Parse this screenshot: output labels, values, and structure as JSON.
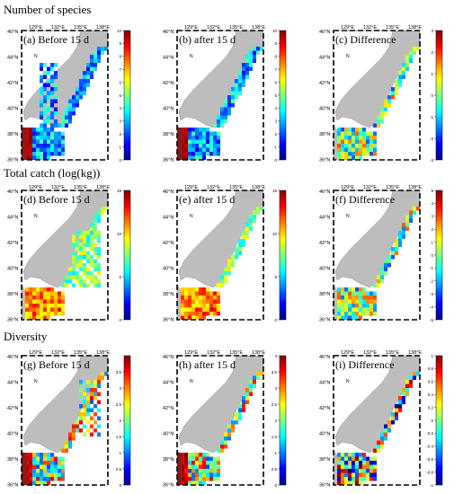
{
  "sections": [
    {
      "title": "Number of species",
      "panels": [
        {
          "label": "(a) Before 15 d",
          "cbar": {
            "min": 0,
            "max": 10,
            "ticks": [
              10,
              9,
              8,
              7,
              6,
              5,
              4,
              3,
              2,
              1,
              0
            ]
          }
        },
        {
          "label": "(b) after 15 d",
          "cbar": {
            "min": 0,
            "max": 10,
            "ticks": [
              10,
              9,
              8,
              7,
              6,
              5,
              4,
              3,
              2,
              1,
              0
            ]
          }
        },
        {
          "label": "(c) Difference",
          "cbar": {
            "min": -3,
            "max": 3,
            "ticks": [
              3,
              2,
              1,
              0,
              -1,
              -2,
              -3
            ]
          }
        }
      ]
    },
    {
      "title": "Total catch (log(kg))",
      "panels": [
        {
          "label": "(d) Before 15 d",
          "cbar": {
            "min": 0,
            "max": 15,
            "ticks": [
              15,
              10,
              5,
              0
            ]
          }
        },
        {
          "label": "(e) after 15 d",
          "cbar": {
            "min": 0,
            "max": 15,
            "ticks": [
              15,
              10,
              5,
              0
            ]
          }
        },
        {
          "label": "(f) Difference",
          "cbar": {
            "min": -5,
            "max": 5,
            "ticks": [
              5,
              4,
              3,
              2,
              1,
              0,
              -1,
              -2,
              -3,
              -4,
              -5
            ]
          }
        }
      ]
    },
    {
      "title": "Diversity",
      "panels": [
        {
          "label": "(g) Before 15 d",
          "cbar": {
            "min": 0,
            "max": 4,
            "ticks": [
              3.5,
              3,
              2.5,
              2,
              1.5,
              1,
              0.5,
              0
            ]
          }
        },
        {
          "label": "(h) after 15 d",
          "cbar": {
            "min": 0,
            "max": 4,
            "ticks": [
              4,
              3.5,
              3,
              2.5,
              2,
              1.5,
              1,
              0.5,
              0
            ]
          }
        },
        {
          "label": "(i) Difference",
          "cbar": {
            "min": -1,
            "max": 1,
            "ticks": [
              1,
              0.8,
              0.6,
              0.4,
              0.2,
              0,
              -0.2,
              -0.4,
              -0.6,
              -0.8,
              -1
            ]
          }
        }
      ]
    }
  ],
  "map_axes": {
    "x_ticks": [
      "129°E",
      "132°E",
      "135°E",
      "138°E"
    ],
    "y_ticks": [
      "46°N",
      "44°N",
      "42°N",
      "40°N",
      "38°N",
      "36°N"
    ]
  },
  "north_arrow": "N",
  "chart_data": {
    "type": "heatmap",
    "grid": "3 x 3 map panels with fishing-grid cells and colorbars",
    "colors": {
      "land": "#bdbdbd",
      "sea": "#ffffff",
      "coast_dark": "#8b1a1a",
      "scale": [
        "#00008f",
        "#0000ff",
        "#0080ff",
        "#00ffff",
        "#80ff80",
        "#ffff00",
        "#ff8000",
        "#ff0000",
        "#800000"
      ]
    }
  }
}
